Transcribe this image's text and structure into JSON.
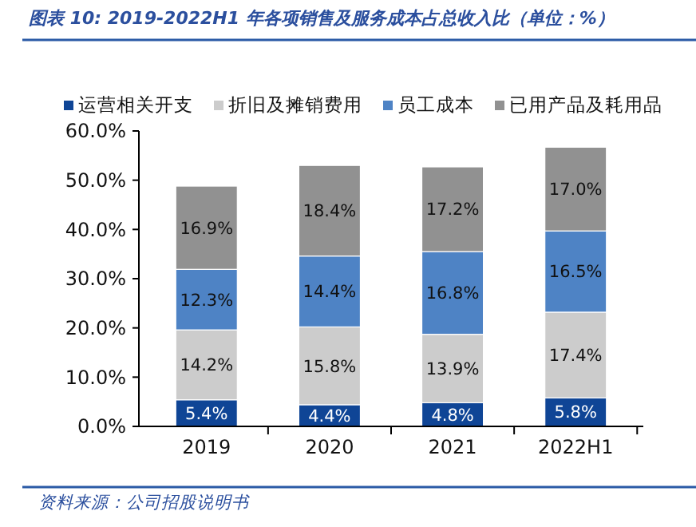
{
  "chart_data": {
    "type": "bar",
    "stacked": true,
    "title": "图表 10:  2019-2022H1 年各项销售及服务成本占总收入比（单位：%）",
    "annotations": [
      "资料来源：公司招股说明书"
    ],
    "categories": [
      "2019",
      "2020",
      "2021",
      "2022H1"
    ],
    "series": [
      {
        "name": "运营相关开支",
        "color": "#0f4596",
        "values": [
          5.4,
          4.4,
          4.8,
          5.8
        ],
        "value_labels": [
          "5.4%",
          "4.4%",
          "4.8%",
          "5.8%"
        ]
      },
      {
        "name": "折旧及摊销费用",
        "color": "#cccccc",
        "values": [
          14.2,
          15.8,
          13.9,
          17.4
        ],
        "value_labels": [
          "14.2%",
          "15.8%",
          "13.9%",
          "17.4%"
        ]
      },
      {
        "name": "员工成本",
        "color": "#4e83c5",
        "values": [
          12.3,
          14.4,
          16.8,
          16.5
        ],
        "value_labels": [
          "12.3%",
          "14.4%",
          "16.8%",
          "16.5%"
        ]
      },
      {
        "name": "已用产品及耗用品",
        "color": "#919191",
        "values": [
          16.9,
          18.4,
          17.2,
          17.0
        ],
        "value_labels": [
          "16.9%",
          "18.4%",
          "17.2%",
          "17.0%"
        ]
      }
    ],
    "ylim": [
      0,
      60
    ],
    "yticks": [
      {
        "value": 0,
        "label": "0.0%"
      },
      {
        "value": 10,
        "label": "10.0%"
      },
      {
        "value": 20,
        "label": "20.0%"
      },
      {
        "value": 30,
        "label": "30.0%"
      },
      {
        "value": 40,
        "label": "40.0%"
      },
      {
        "value": 50,
        "label": "50.0%"
      },
      {
        "value": 60,
        "label": "60.0%"
      }
    ],
    "grid": false,
    "legend": "top"
  }
}
